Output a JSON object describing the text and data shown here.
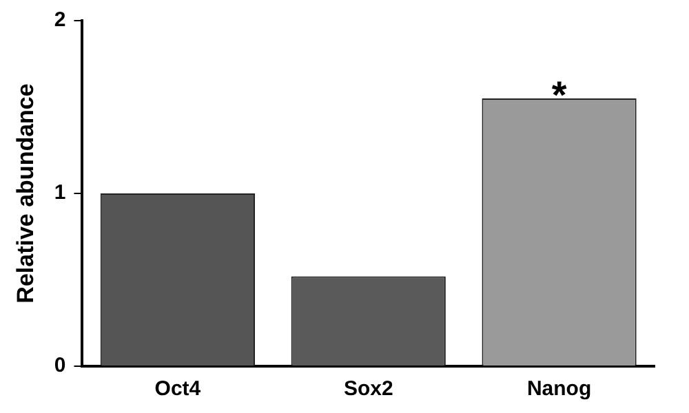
{
  "chart_data": {
    "type": "bar",
    "ylabel": "Relative abundance",
    "categories": [
      "Oct4",
      "Sox2",
      "Nanog"
    ],
    "values": [
      1.0,
      0.52,
      1.55
    ],
    "colors": [
      "#555555",
      "#5a5a5a",
      "#9a9a9a"
    ],
    "ylim": [
      0,
      2
    ],
    "yticks": [
      0,
      1,
      2
    ],
    "grid": false,
    "legend": false,
    "annotations": [
      {
        "text": "*",
        "x": "Nanog",
        "y": 1.55
      }
    ]
  }
}
